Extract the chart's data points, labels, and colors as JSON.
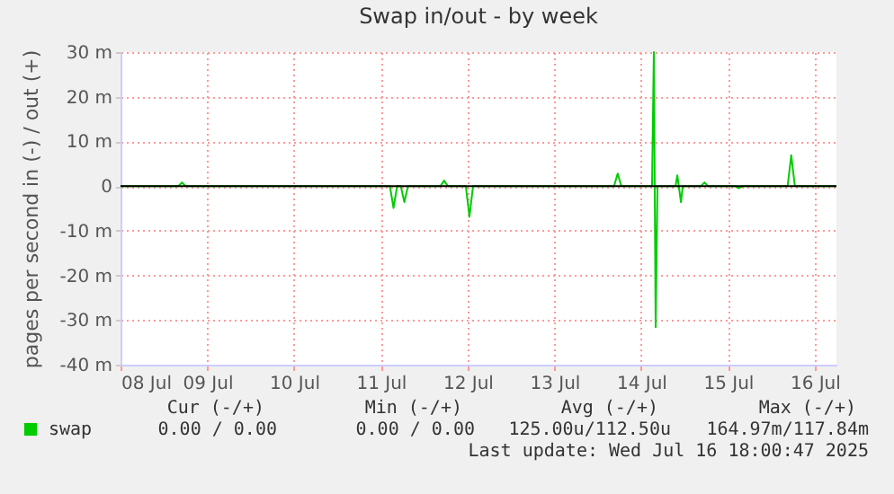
{
  "chart_data": {
    "type": "line",
    "title": "Swap in/out - by week",
    "ylabel": "pages per second in (-) / out (+)",
    "series": [
      {
        "name": "swap",
        "color": "#00cc00",
        "x": [
          "2025-07-08T00:00",
          "2025-07-08T16:00",
          "2025-07-08T17:00",
          "2025-07-08T18:00",
          "2025-07-11T02:30",
          "2025-07-11T03:30",
          "2025-07-11T04:30",
          "2025-07-11T05:30",
          "2025-07-11T06:30",
          "2025-07-11T07:30",
          "2025-07-11T16:30",
          "2025-07-11T17:30",
          "2025-07-11T18:30",
          "2025-07-11T23:30",
          "2025-07-12T00:30",
          "2025-07-12T01:30",
          "2025-07-13T16:30",
          "2025-07-13T17:30",
          "2025-07-13T18:30",
          "2025-07-14T03:00",
          "2025-07-14T03:30",
          "2025-07-14T04:00",
          "2025-07-14T04:30",
          "2025-07-14T09:30",
          "2025-07-14T10:00",
          "2025-07-14T11:00",
          "2025-07-14T11:30",
          "2025-07-14T16:30",
          "2025-07-14T17:30",
          "2025-07-14T18:30",
          "2025-07-15T02:00",
          "2025-07-15T03:00",
          "2025-07-15T04:00",
          "2025-07-15T16:30",
          "2025-07-15T17:30",
          "2025-07-15T18:30",
          "2025-07-16T06:00"
        ],
        "values": [
          0,
          0,
          0.8,
          0,
          0,
          -4.9,
          0,
          0,
          -3.6,
          0,
          0,
          1.2,
          0,
          0,
          -6.9,
          0,
          0,
          2.8,
          0,
          0,
          30,
          -31.6,
          0,
          0,
          2.4,
          -3.6,
          0,
          0,
          0.8,
          0,
          0,
          -0.5,
          0,
          0,
          6.9,
          0,
          0
        ]
      }
    ],
    "xlim": [
      "2025-07-08T00:00",
      "2025-07-16T06:00"
    ],
    "xticks": [
      {
        "value": "2025-07-08",
        "label": "08 Jul"
      },
      {
        "value": "2025-07-09",
        "label": "09 Jul"
      },
      {
        "value": "2025-07-10",
        "label": "10 Jul"
      },
      {
        "value": "2025-07-11",
        "label": "11 Jul"
      },
      {
        "value": "2025-07-12",
        "label": "12 Jul"
      },
      {
        "value": "2025-07-13",
        "label": "13 Jul"
      },
      {
        "value": "2025-07-14",
        "label": "14 Jul"
      },
      {
        "value": "2025-07-15",
        "label": "15 Jul"
      },
      {
        "value": "2025-07-16",
        "label": "16 Jul"
      }
    ],
    "ylim": [
      -40,
      30
    ],
    "yticks": [
      {
        "value": 30,
        "label": "30 m"
      },
      {
        "value": 20,
        "label": "20 m"
      },
      {
        "value": 10,
        "label": "10 m"
      },
      0,
      {
        "value": -10,
        "label": "-10 m"
      },
      {
        "value": -20,
        "label": "-20 m"
      },
      {
        "value": -30,
        "label": "-30 m"
      },
      {
        "value": -40,
        "label": "-40 m"
      }
    ],
    "ref_lines": [
      {
        "axis": "y",
        "value": 0,
        "color": "#000000"
      }
    ],
    "grid": true,
    "legend": "bottom left",
    "marker": "none",
    "line_style": "solid",
    "annotations": [
      "Cur (-/+)",
      "Min (-/+)",
      "Avg (-/+)",
      "Max (-/+)",
      "0.00 /   0.00",
      "0.00 /   0.00",
      "125.00u/112.50u",
      "164.97m/117.84m",
      "Last update: Wed Jul 16 18:00:47 2025"
    ]
  }
}
